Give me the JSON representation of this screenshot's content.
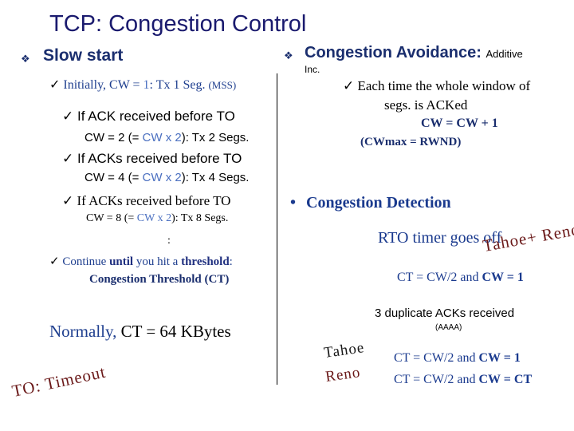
{
  "title": "TCP: Congestion Control",
  "left": {
    "bullet_glyph": "❖",
    "check_glyph": "✓",
    "slow_start": "Slow start",
    "initially_pre": "Initially, CW = ",
    "initially_one": "1",
    "initially_post": ": Tx 1 Seg. ",
    "initially_mss": "(MSS)",
    "ack1": "If ACK received before TO",
    "cw2_pre": "CW = 2 (= ",
    "cw2_blue": "CW x 2",
    "cw2_post": "): Tx 2 Segs.",
    "ack2": "If ACKs received before TO",
    "cw4_pre": "CW = 4 (= ",
    "cw4_blue": "CW x 2",
    "cw4_post": "): Tx 4 Segs.",
    "ack3": "If ACKs received before TO",
    "cw8_pre": "CW = 8 (= ",
    "cw8_blue": "CW x 2",
    "cw8_post": "): Tx 8 Segs.",
    "colon": ":",
    "cont_pre": "Continue ",
    "cont_until": "until",
    "cont_mid": " you hit a ",
    "cont_threshold": "threshold",
    "cont_post": ":",
    "ct_label": "Congestion Threshold (CT)",
    "normally_pre": "Normally, ",
    "normally_post": "CT = 64 KBytes",
    "to_label": "TO: Timeout"
  },
  "right": {
    "bullet_glyph": "❖",
    "ca_title": "Congestion Avoidance:",
    "ca_additive": "Additive",
    "ca_inc": "Inc.",
    "each_time_1": "Each time the whole window of",
    "each_time_2": "segs. is ACKed",
    "cw_plus": "CW = CW + 1",
    "cwmax": "(CWmax = RWND)",
    "cd_bullet": "•",
    "cd_title": "Congestion Detection",
    "rto": "RTO timer goes off",
    "tahoe_plus": "Tahoe+ Reno",
    "ct_cw1": "CT = CW/2 and ",
    "ct_cw1_b": "CW = 1",
    "dup": "3 duplicate  ACKs received",
    "aaaa": "(AAAA)",
    "tahoe": "Tahoe",
    "reno": "Reno",
    "tahoe_rule_pre": "CT = CW/2 and ",
    "tahoe_rule_b": "CW = 1",
    "reno_rule_pre": "CT = CW/2 and ",
    "reno_rule_b": "CW = CT"
  }
}
